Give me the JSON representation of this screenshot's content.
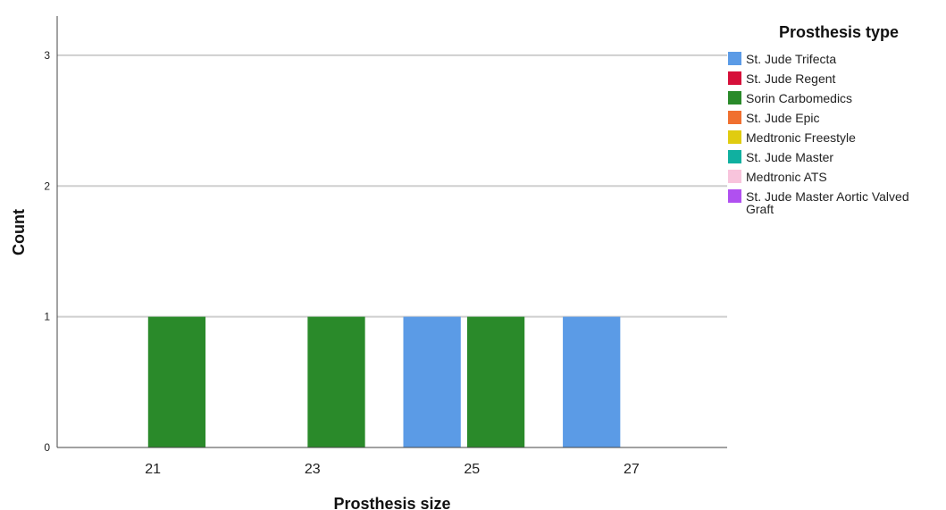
{
  "chart_data": {
    "type": "bar",
    "xlabel": "Prosthesis size",
    "ylabel": "Count",
    "ylim": [
      0,
      3.3
    ],
    "yticks": [
      0,
      1,
      2,
      3
    ],
    "xlim": [
      19.8,
      28.2
    ],
    "xticks": [
      21,
      23,
      25,
      27
    ],
    "grid": true,
    "legend": {
      "title": "Prosthesis type",
      "placement": "right",
      "entries": [
        {
          "label": "St. Jude Trifecta",
          "lines": [
            "St. Jude Trifecta"
          ],
          "color": "#5b9be6"
        },
        {
          "label": "St. Jude Regent",
          "lines": [
            "St. Jude Regent"
          ],
          "color": "#d6103a"
        },
        {
          "label": "Sorin Carbomedics",
          "lines": [
            "Sorin Carbomedics"
          ],
          "color": "#2a8a2a"
        },
        {
          "label": "St. Jude Epic",
          "lines": [
            "St. Jude Epic"
          ],
          "color": "#f07030"
        },
        {
          "label": "Medtronic Freestyle",
          "lines": [
            "Medtronic Freestyle"
          ],
          "color": "#e0cc10"
        },
        {
          "label": "St. Jude Master",
          "lines": [
            "St. Jude Master"
          ],
          "color": "#10b0a0"
        },
        {
          "label": "Medtronic ATS",
          "lines": [
            "Medtronic ATS"
          ],
          "color": "#f8c4dc"
        },
        {
          "label": "St. Jude Master Aortic Valved Graft",
          "lines": [
            "St. Jude Master Aortic Valved",
            "Graft"
          ],
          "color": "#b050f0"
        }
      ]
    },
    "bars": [
      {
        "size": 21,
        "type": "Sorin Carbomedics",
        "count": 1,
        "offset": 0.3
      },
      {
        "size": 23,
        "type": "Sorin Carbomedics",
        "count": 1,
        "offset": 0.3
      },
      {
        "size": 25,
        "type": "St. Jude Trifecta",
        "count": 1,
        "offset": -0.5
      },
      {
        "size": 25,
        "type": "Sorin Carbomedics",
        "count": 1,
        "offset": 0.3
      },
      {
        "size": 27,
        "type": "St. Jude Trifecta",
        "count": 1,
        "offset": -0.5
      }
    ]
  }
}
